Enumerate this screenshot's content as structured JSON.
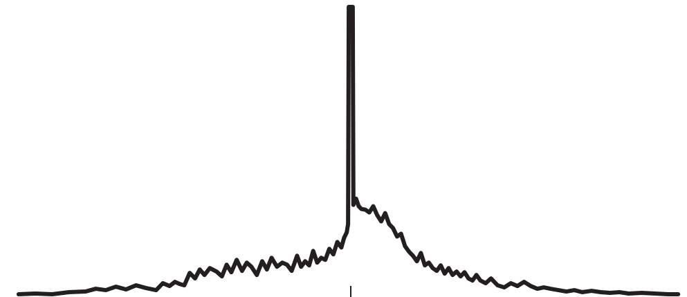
{
  "chart_data": {
    "type": "line",
    "title": "",
    "xlabel": "",
    "ylabel": "",
    "xlim": [
      -500,
      500
    ],
    "ylim": [
      0,
      430
    ],
    "grid": false,
    "legend": "none",
    "colors": {
      "line": "#231f20",
      "background": "#ffffff"
    },
    "center_tick_x": 0,
    "series": [
      {
        "x": [
          -495,
          -470,
          -445,
          -420,
          -395,
          -380,
          -365,
          -350,
          -335,
          -320,
          -305,
          -290,
          -280,
          -270,
          -262,
          -255,
          -248,
          -240,
          -232,
          -225,
          -218,
          -210,
          -200,
          -192,
          -185,
          -178,
          -170,
          -162,
          -155,
          -148,
          -140,
          -132,
          -125,
          -118,
          -110,
          -102,
          -95,
          -88,
          -80,
          -74,
          -68,
          -62,
          -56,
          -50,
          -44,
          -38,
          -32,
          -26,
          -20,
          -14,
          -10,
          -6,
          -4,
          -3,
          3,
          4,
          6,
          8,
          12,
          16,
          22,
          28,
          34,
          40,
          46,
          52,
          58,
          64,
          70,
          76,
          82,
          88,
          94,
          100,
          106,
          112,
          118,
          124,
          130,
          136,
          142,
          148,
          154,
          160,
          166,
          172,
          178,
          184,
          190,
          196,
          204,
          212,
          222,
          232,
          242,
          252,
          262,
          272,
          282,
          292,
          302,
          314,
          326,
          338,
          350,
          364,
          378,
          392,
          406,
          420,
          440,
          460,
          480,
          495
        ],
        "y": [
          2,
          3,
          2,
          5,
          6,
          10,
          8,
          13,
          9,
          15,
          11,
          8,
          18,
          14,
          20,
          17,
          15,
          33,
          25,
          38,
          30,
          40,
          35,
          28,
          45,
          34,
          52,
          36,
          48,
          42,
          30,
          50,
          38,
          55,
          42,
          48,
          45,
          36,
          58,
          42,
          50,
          44,
          65,
          48,
          55,
          52,
          68,
          60,
          78,
          70,
          84,
          92,
          104,
          420,
          420,
          132,
          139,
          141,
          130,
          126,
          125,
          121,
          130,
          117,
          108,
          120,
          104,
          98,
          86,
          90,
          72,
          64,
          58,
          50,
          62,
          44,
          48,
          40,
          36,
          44,
          32,
          40,
          30,
          35,
          28,
          34,
          25,
          22,
          30,
          22,
          18,
          25,
          15,
          12,
          18,
          14,
          20,
          14,
          10,
          12,
          10,
          8,
          6,
          8,
          5,
          7,
          5,
          4,
          5,
          3,
          4,
          3,
          2,
          2
        ]
      }
    ]
  }
}
